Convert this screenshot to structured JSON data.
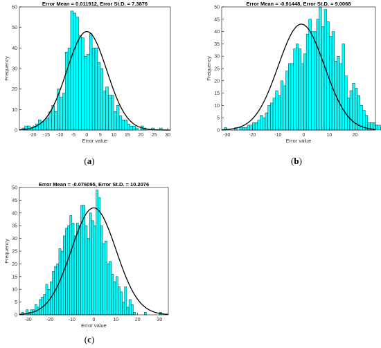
{
  "chart_data": [
    {
      "type": "bar",
      "caption_prefix": "(",
      "caption_letter": "a",
      "caption_suffix": ")",
      "title": "Error Mean = 0.011912, Error St.D. = 7.3876",
      "xlabel": "Error value",
      "ylabel": "Frequency",
      "xlim": [
        -25,
        31
      ],
      "ylim": [
        0,
        60
      ],
      "xticks": [
        -20,
        -15,
        -10,
        -5,
        0,
        5,
        10,
        15,
        20,
        25,
        30
      ],
      "yticks": [
        0,
        10,
        20,
        30,
        40,
        50,
        60
      ],
      "bin_start": -24,
      "bin_width": 1,
      "values": [
        1,
        2,
        2,
        1,
        2,
        3,
        5,
        4,
        5,
        6,
        9,
        12,
        9,
        20,
        16,
        18,
        38,
        40,
        58,
        57,
        55,
        46,
        45,
        36,
        37,
        47,
        40,
        40,
        33,
        30,
        19,
        21,
        17,
        17,
        9,
        12,
        7,
        5,
        5,
        3,
        2,
        2,
        1,
        0,
        2,
        1,
        0,
        0,
        1,
        0,
        0,
        1,
        0,
        0,
        0
      ],
      "fit": {
        "mean": 0.011912,
        "std": 7.3876,
        "peak": 48
      },
      "bar_color": "#00ffff",
      "curve_color": "#000000",
      "grid": false
    },
    {
      "type": "bar",
      "caption_prefix": "(",
      "caption_letter": "b",
      "caption_suffix": ")",
      "title": "Error Mean = -0.91448, Error St.D. = 9.0068",
      "xlabel": "Error value",
      "ylabel": "Frequency",
      "xlim": [
        -32,
        28
      ],
      "ylim": [
        0,
        50
      ],
      "xticks": [
        -30,
        -20,
        -10,
        0,
        10,
        20
      ],
      "yticks": [
        0,
        5,
        10,
        15,
        20,
        25,
        30,
        35,
        40,
        45,
        50
      ],
      "bin_start": -31,
      "bin_width": 1,
      "values": [
        1,
        0,
        0,
        0,
        1,
        0,
        1,
        1,
        1,
        2,
        2,
        3,
        3,
        4,
        6,
        5,
        7,
        10,
        11,
        13,
        16,
        14,
        20,
        18,
        24,
        27,
        27,
        33,
        35,
        33,
        27,
        31,
        39,
        45,
        40,
        40,
        45,
        50,
        42,
        49,
        44,
        38,
        40,
        28,
        30,
        27,
        35,
        22,
        13,
        16,
        19,
        17,
        14,
        10,
        8,
        6,
        3,
        3,
        3,
        2,
        2,
        1,
        1,
        2,
        1,
        1
      ],
      "fit": {
        "mean": -0.91448,
        "std": 9.0068,
        "peak": 43
      },
      "bar_color": "#00ffff",
      "curve_color": "#000000",
      "grid": false
    },
    {
      "type": "bar",
      "caption_prefix": "(",
      "caption_letter": "c",
      "caption_suffix": ")",
      "title": "Error Mean = -0.076095, Error St.D. = 10.2076",
      "xlabel": "Error value",
      "ylabel": "Frequency",
      "xlim": [
        -34,
        34
      ],
      "ylim": [
        0,
        50
      ],
      "xticks": [
        -30,
        -20,
        -10,
        0,
        10,
        20,
        30
      ],
      "yticks": [
        0,
        5,
        10,
        15,
        20,
        25,
        30,
        35,
        40,
        45,
        50
      ],
      "bin_start": -33,
      "bin_width": 1,
      "values": [
        1,
        0,
        2,
        1,
        2,
        2,
        4,
        3,
        6,
        7,
        8,
        12,
        10,
        13,
        17,
        19,
        20,
        26,
        25,
        31,
        34,
        35,
        39,
        36,
        31,
        36,
        35,
        43,
        43,
        35,
        30,
        40,
        37,
        35,
        49,
        46,
        35,
        28,
        29,
        20,
        21,
        16,
        13,
        15,
        11,
        9,
        5,
        11,
        3,
        6,
        4,
        1,
        0,
        0,
        0,
        0,
        1,
        0,
        0,
        0,
        0,
        0,
        0,
        1,
        0,
        0
      ],
      "fit": {
        "mean": -0.076095,
        "std": 10.2076,
        "peak": 42
      },
      "bar_color": "#00ffff",
      "curve_color": "#000000",
      "grid": false
    }
  ]
}
